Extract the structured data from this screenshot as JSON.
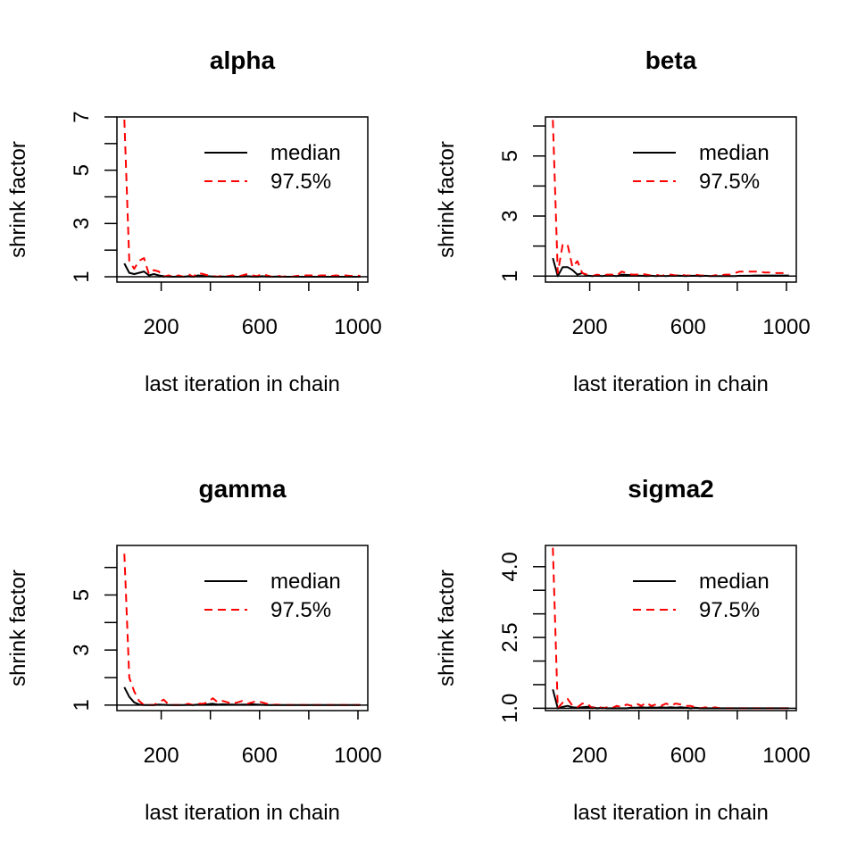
{
  "chart_data": [
    {
      "type": "line",
      "title": "alpha",
      "xlabel": "last iteration in chain",
      "ylabel": "shrink factor",
      "xlim": [
        20,
        1040
      ],
      "ylim": [
        0.8,
        7.0
      ],
      "xticks": [
        200,
        400,
        600,
        800,
        1000
      ],
      "xticklabels": [
        "200",
        "",
        "600",
        "",
        "1000"
      ],
      "yticks": [
        1,
        2,
        3,
        4,
        5,
        6,
        7
      ],
      "yticklabels": [
        "1",
        "",
        "3",
        "",
        "5",
        "",
        "7"
      ],
      "legend": {
        "position": "top-right",
        "entries": [
          "median",
          "97.5%"
        ]
      },
      "series": [
        {
          "name": "median",
          "color": "#000000",
          "dash": "solid",
          "x": [
            50,
            70,
            90,
            110,
            130,
            150,
            170,
            190,
            210,
            230,
            250,
            270,
            290,
            310,
            330,
            350,
            370,
            390,
            410,
            430,
            450,
            470,
            490,
            510,
            530,
            550,
            570,
            590,
            610,
            630,
            650,
            670,
            690,
            710,
            730,
            750,
            770,
            790,
            810,
            830,
            850,
            870,
            890,
            910,
            930,
            950,
            970,
            990,
            1010
          ],
          "values": [
            1.5,
            1.15,
            1.1,
            1.15,
            1.2,
            1.05,
            1.1,
            1.05,
            1.02,
            1.01,
            1.0,
            1.01,
            1.0,
            1.02,
            1.0,
            1.05,
            1.03,
            1.02,
            1.01,
            1.0,
            1.01,
            1.0,
            1.01,
            1.0,
            1.01,
            1.02,
            1.01,
            1.0,
            1.02,
            1.01,
            1.0,
            1.01,
            1.0,
            1.0,
            1.0,
            1.0,
            1.0,
            1.0,
            1.0,
            1.0,
            1.0,
            1.0,
            1.0,
            1.0,
            1.0,
            1.0,
            1.0,
            1.0,
            1.0
          ]
        },
        {
          "name": "97.5%",
          "color": "#ff0000",
          "dash": "dashed",
          "x": [
            50,
            70,
            90,
            110,
            130,
            150,
            170,
            190,
            210,
            230,
            250,
            270,
            290,
            310,
            330,
            350,
            370,
            390,
            410,
            430,
            450,
            470,
            490,
            510,
            530,
            550,
            570,
            590,
            610,
            630,
            650,
            670,
            690,
            710,
            730,
            750,
            770,
            790,
            810,
            830,
            850,
            870,
            890,
            910,
            930,
            950,
            970,
            990,
            1010
          ],
          "values": [
            6.9,
            1.6,
            1.3,
            1.6,
            1.7,
            1.1,
            1.25,
            1.2,
            1.0,
            1.05,
            1.0,
            1.05,
            1.0,
            1.1,
            1.0,
            1.15,
            1.1,
            1.05,
            1.03,
            1.0,
            1.05,
            1.02,
            1.05,
            1.0,
            1.05,
            1.1,
            1.05,
            1.02,
            1.1,
            1.05,
            1.0,
            1.05,
            1.0,
            1.02,
            1.0,
            1.03,
            1.05,
            1.05,
            1.05,
            1.03,
            1.05,
            1.05,
            1.03,
            1.05,
            1.03,
            1.05,
            1.03,
            1.05,
            1.03
          ]
        }
      ]
    },
    {
      "type": "line",
      "title": "beta",
      "xlabel": "last iteration in chain",
      "ylabel": "shrink factor",
      "xlim": [
        20,
        1040
      ],
      "ylim": [
        0.8,
        6.3
      ],
      "xticks": [
        200,
        400,
        600,
        800,
        1000
      ],
      "xticklabels": [
        "200",
        "",
        "600",
        "",
        "1000"
      ],
      "yticks": [
        1,
        2,
        3,
        4,
        5,
        6
      ],
      "yticklabels": [
        "1",
        "",
        "3",
        "",
        "5",
        ""
      ],
      "legend": {
        "position": "top-right",
        "entries": [
          "median",
          "97.5%"
        ]
      },
      "series": [
        {
          "name": "median",
          "color": "#000000",
          "dash": "solid",
          "x": [
            50,
            70,
            90,
            110,
            130,
            150,
            170,
            190,
            210,
            230,
            250,
            270,
            290,
            310,
            330,
            350,
            370,
            390,
            410,
            430,
            450,
            470,
            490,
            510,
            530,
            550,
            570,
            590,
            610,
            630,
            650,
            670,
            690,
            710,
            730,
            750,
            770,
            790,
            810,
            830,
            850,
            870,
            890,
            910,
            930,
            950,
            970,
            990,
            1010
          ],
          "values": [
            1.6,
            1.0,
            1.3,
            1.3,
            1.2,
            1.05,
            1.1,
            1.02,
            1.0,
            1.02,
            1.0,
            1.02,
            1.01,
            1.0,
            1.05,
            1.04,
            1.03,
            1.02,
            1.01,
            1.0,
            1.01,
            1.0,
            1.01,
            1.0,
            1.01,
            1.02,
            1.01,
            1.0,
            1.01,
            1.01,
            1.0,
            1.01,
            1.0,
            1.0,
            1.0,
            1.0,
            1.0,
            1.0,
            1.01,
            1.01,
            1.01,
            1.02,
            1.02,
            1.02,
            1.02,
            1.02,
            1.02,
            1.02,
            1.02
          ]
        },
        {
          "name": "97.5%",
          "color": "#ff0000",
          "dash": "dashed",
          "x": [
            50,
            70,
            90,
            110,
            130,
            150,
            170,
            190,
            210,
            230,
            250,
            270,
            290,
            310,
            330,
            350,
            370,
            390,
            410,
            430,
            450,
            470,
            490,
            510,
            530,
            550,
            570,
            590,
            610,
            630,
            650,
            670,
            690,
            710,
            730,
            750,
            770,
            790,
            810,
            830,
            850,
            870,
            890,
            910,
            930,
            950,
            970,
            990,
            1010
          ],
          "values": [
            6.2,
            1.1,
            2.05,
            2.05,
            1.3,
            1.5,
            1.1,
            1.05,
            1.0,
            1.05,
            1.02,
            1.05,
            1.05,
            1.02,
            1.15,
            1.1,
            1.05,
            1.05,
            1.08,
            1.05,
            1.02,
            1.05,
            1.0,
            1.05,
            1.05,
            1.02,
            1.05,
            1.02,
            1.02,
            1.05,
            1.02,
            1.02,
            1.0,
            1.03,
            1.02,
            1.05,
            1.05,
            1.1,
            1.15,
            1.15,
            1.15,
            1.15,
            1.15,
            1.12,
            1.12,
            1.1,
            1.1,
            1.1,
            1.08
          ]
        }
      ]
    },
    {
      "type": "line",
      "title": "gamma",
      "xlabel": "last iteration in chain",
      "ylabel": "shrink factor",
      "xlim": [
        20,
        1040
      ],
      "ylim": [
        0.8,
        6.8
      ],
      "xticks": [
        200,
        400,
        600,
        800,
        1000
      ],
      "xticklabels": [
        "200",
        "",
        "600",
        "",
        "1000"
      ],
      "yticks": [
        1,
        2,
        3,
        4,
        5,
        6
      ],
      "yticklabels": [
        "1",
        "",
        "3",
        "",
        "5",
        ""
      ],
      "legend": {
        "position": "top-right",
        "entries": [
          "median",
          "97.5%"
        ]
      },
      "series": [
        {
          "name": "median",
          "color": "#000000",
          "dash": "solid",
          "x": [
            50,
            70,
            90,
            110,
            130,
            150,
            170,
            190,
            210,
            230,
            250,
            270,
            290,
            310,
            330,
            350,
            370,
            390,
            410,
            430,
            450,
            470,
            490,
            510,
            530,
            550,
            570,
            590,
            610,
            630,
            650,
            670,
            690,
            710,
            730,
            750,
            770,
            790,
            810,
            830,
            850,
            870,
            890,
            910,
            930,
            950,
            970,
            990,
            1010
          ],
          "values": [
            1.65,
            1.3,
            1.1,
            1.02,
            1.0,
            1.0,
            1.0,
            1.02,
            1.01,
            1.0,
            1.0,
            1.0,
            1.0,
            1.01,
            1.0,
            1.02,
            1.02,
            1.03,
            1.05,
            1.02,
            1.03,
            1.02,
            1.02,
            1.01,
            1.02,
            1.02,
            1.03,
            1.02,
            1.01,
            1.0,
            1.0,
            1.0,
            1.0,
            1.0,
            1.0,
            1.0,
            1.0,
            1.0,
            1.0,
            1.0,
            1.0,
            1.0,
            1.0,
            1.0,
            1.0,
            1.0,
            1.0,
            1.0,
            1.0
          ]
        },
        {
          "name": "97.5%",
          "color": "#ff0000",
          "dash": "dashed",
          "x": [
            50,
            70,
            90,
            110,
            130,
            150,
            170,
            190,
            210,
            230,
            250,
            270,
            290,
            310,
            330,
            350,
            370,
            390,
            410,
            430,
            450,
            470,
            490,
            510,
            530,
            550,
            570,
            590,
            610,
            630,
            650,
            670,
            690,
            710,
            730,
            750,
            770,
            790,
            810,
            830,
            850,
            870,
            890,
            910,
            930,
            950,
            970,
            990,
            1010
          ],
          "values": [
            6.5,
            2.0,
            1.5,
            1.15,
            1.0,
            1.0,
            1.0,
            1.1,
            1.2,
            1.02,
            1.0,
            1.0,
            1.0,
            1.05,
            1.0,
            1.05,
            1.05,
            1.1,
            1.25,
            1.1,
            1.15,
            1.1,
            1.05,
            1.1,
            1.15,
            1.05,
            1.1,
            1.15,
            1.1,
            1.05,
            1.0,
            1.02,
            1.0,
            1.0,
            1.0,
            1.0,
            1.0,
            1.0,
            1.0,
            1.0,
            1.0,
            1.0,
            1.0,
            1.0,
            1.0,
            1.0,
            1.0,
            1.0,
            1.0
          ]
        }
      ]
    },
    {
      "type": "line",
      "title": "sigma2",
      "xlabel": "last iteration in chain",
      "ylabel": "shrink factor",
      "xlim": [
        20,
        1040
      ],
      "ylim": [
        0.95,
        4.45
      ],
      "xticks": [
        200,
        400,
        600,
        800,
        1000
      ],
      "xticklabels": [
        "200",
        "",
        "600",
        "",
        "1000"
      ],
      "yticks": [
        1.0,
        1.5,
        2.0,
        2.5,
        3.0,
        3.5,
        4.0
      ],
      "yticklabels": [
        "1.0",
        "",
        "",
        "2.5",
        "",
        "",
        "4.0"
      ],
      "legend": {
        "position": "top-right",
        "entries": [
          "median",
          "97.5%"
        ]
      },
      "series": [
        {
          "name": "median",
          "color": "#000000",
          "dash": "solid",
          "x": [
            50,
            70,
            90,
            110,
            130,
            150,
            170,
            190,
            210,
            230,
            250,
            270,
            290,
            310,
            330,
            350,
            370,
            390,
            410,
            430,
            450,
            470,
            490,
            510,
            530,
            550,
            570,
            590,
            610,
            630,
            650,
            670,
            690,
            710,
            730,
            750,
            770,
            790,
            810,
            830,
            850,
            870,
            890,
            910,
            930,
            950,
            970,
            990,
            1010
          ],
          "values": [
            1.4,
            1.0,
            1.03,
            1.05,
            1.02,
            1.01,
            1.02,
            1.03,
            1.02,
            1.0,
            1.01,
            1.0,
            1.0,
            1.0,
            1.0,
            1.0,
            1.01,
            1.01,
            1.02,
            1.01,
            1.02,
            1.01,
            1.02,
            1.01,
            1.02,
            1.01,
            1.02,
            1.01,
            1.0,
            1.01,
            1.0,
            1.0,
            1.0,
            1.0,
            1.0,
            1.0,
            1.0,
            1.0,
            1.0,
            1.0,
            1.0,
            1.0,
            1.0,
            1.0,
            1.0,
            1.0,
            1.0,
            1.0,
            1.0
          ]
        },
        {
          "name": "97.5%",
          "color": "#ff0000",
          "dash": "dashed",
          "x": [
            50,
            70,
            90,
            110,
            130,
            150,
            170,
            190,
            210,
            230,
            250,
            270,
            290,
            310,
            330,
            350,
            370,
            390,
            410,
            430,
            450,
            470,
            490,
            510,
            530,
            550,
            570,
            590,
            610,
            630,
            650,
            670,
            690,
            710,
            730,
            750,
            770,
            790,
            810,
            830,
            850,
            870,
            890,
            910,
            930,
            950,
            970,
            990,
            1010
          ],
          "values": [
            4.4,
            1.0,
            1.12,
            1.2,
            1.05,
            1.02,
            1.1,
            1.1,
            1.0,
            1.05,
            1.0,
            1.02,
            1.0,
            1.05,
            1.02,
            1.08,
            1.05,
            1.1,
            1.05,
            1.12,
            1.05,
            1.08,
            1.05,
            1.1,
            1.06,
            1.1,
            1.08,
            1.05,
            1.05,
            1.02,
            1.0,
            1.02,
            1.0,
            1.02,
            1.0,
            1.0,
            1.0,
            1.0,
            1.0,
            1.0,
            1.0,
            1.0,
            1.0,
            1.0,
            1.0,
            1.0,
            1.0,
            1.0,
            1.0
          ]
        }
      ]
    }
  ]
}
